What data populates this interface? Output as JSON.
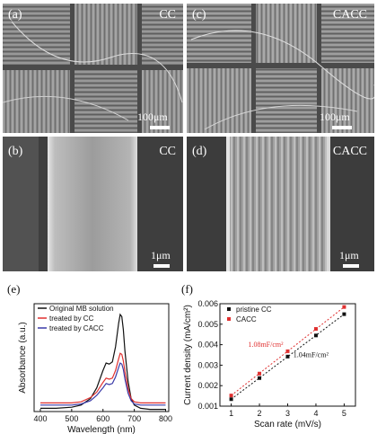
{
  "panels": {
    "a": {
      "label": "(a)",
      "tag": "CC",
      "scale": "100μm"
    },
    "c": {
      "label": "(c)",
      "tag": "CACC",
      "scale": "100μm"
    },
    "b": {
      "label": "(b)",
      "tag": "CC",
      "scale": "1μm"
    },
    "d": {
      "label": "(d)",
      "tag": "CACC",
      "scale": "1μm"
    }
  },
  "chart_data": [
    {
      "panel": "(e)",
      "type": "line",
      "xlabel": "Wavelength (nm)",
      "ylabel": "Absorbance (a.u.)",
      "xlim": [
        380,
        810
      ],
      "xticks": [
        400,
        500,
        600,
        700,
        800
      ],
      "ylim": [
        0,
        1.0
      ],
      "x": [
        400,
        450,
        500,
        530,
        560,
        580,
        600,
        610,
        620,
        630,
        640,
        650,
        655,
        660,
        665,
        670,
        680,
        690,
        700,
        720,
        750,
        800
      ],
      "series": [
        {
          "name": "Original MB solution",
          "color": "#111111",
          "values": [
            0.03,
            0.03,
            0.04,
            0.06,
            0.12,
            0.22,
            0.38,
            0.45,
            0.44,
            0.46,
            0.6,
            0.82,
            0.9,
            0.88,
            0.76,
            0.56,
            0.28,
            0.12,
            0.06,
            0.03,
            0.02,
            0.02
          ]
        },
        {
          "name": "treated by CC",
          "color": "#e03030",
          "values": [
            0.08,
            0.08,
            0.08,
            0.09,
            0.13,
            0.18,
            0.27,
            0.31,
            0.3,
            0.31,
            0.38,
            0.49,
            0.54,
            0.53,
            0.47,
            0.37,
            0.21,
            0.12,
            0.09,
            0.08,
            0.08,
            0.08
          ]
        },
        {
          "name": "treated by CACC",
          "color": "#3a3aa8",
          "values": [
            0.06,
            0.06,
            0.06,
            0.07,
            0.1,
            0.15,
            0.22,
            0.26,
            0.25,
            0.26,
            0.32,
            0.41,
            0.45,
            0.44,
            0.39,
            0.3,
            0.17,
            0.1,
            0.07,
            0.06,
            0.06,
            0.06
          ]
        }
      ]
    },
    {
      "panel": "(f)",
      "type": "scatter",
      "xlabel": "Scan rate (mV/s)",
      "ylabel": "Current density (mA/cm²)",
      "xlim": [
        0.6,
        5.4
      ],
      "xticks": [
        1,
        2,
        3,
        4,
        5
      ],
      "ylim": [
        0.001,
        0.006
      ],
      "yticks": [
        "0.001",
        "0.002",
        "0.003",
        "0.004",
        "0.005",
        "0.006"
      ],
      "x": [
        1,
        2,
        3,
        4,
        5
      ],
      "series": [
        {
          "name": "pristine CC",
          "color": "#111111",
          "values": [
            0.00134,
            0.00237,
            0.00342,
            0.00445,
            0.00549
          ],
          "fit": "1.04mF/cm²"
        },
        {
          "name": "CACC",
          "color": "#e03030",
          "values": [
            0.00152,
            0.00259,
            0.00368,
            0.00477,
            0.00584
          ],
          "fit": "1.08mF/cm²"
        }
      ]
    }
  ]
}
